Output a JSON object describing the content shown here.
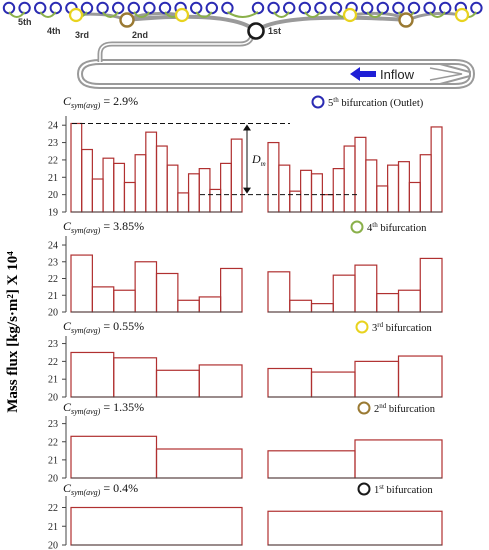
{
  "y_axis_label": "Mass flux [kg/s·m²] X 10⁴",
  "schematic": {
    "inflow_label": "Inflow",
    "generation_labels": [
      "5th",
      "4th",
      "3rd",
      "2nd",
      "1st"
    ],
    "colors": {
      "gen1": "#1a1a1a",
      "gen2": "#9a7a33",
      "gen3": "#e8d31f",
      "gen4": "#8ab04a",
      "gen5": "#2b2bb3",
      "pipe": "#9a9a9a",
      "arrow": "#1f1fd6"
    }
  },
  "chart_data": [
    {
      "type": "bar",
      "id": "gen5",
      "csym_value": "= 2.9%",
      "bifurcation_sup": "th",
      "bifurcation_label": " bifurcation (Outlet)",
      "bifurcation_number": "5",
      "marker_color": "#2b2bb3",
      "ylim": [
        19,
        24.3
      ],
      "yticks": [
        19,
        20,
        21,
        22,
        23,
        24
      ],
      "groups": [
        [
          24.1,
          22.6,
          20.9,
          22.1,
          21.8,
          20.7,
          22.3,
          23.6,
          22.8,
          21.7,
          20.1,
          21.2,
          21.5,
          20.3,
          21.8,
          23.2
        ],
        [
          23.0,
          21.7,
          20.2,
          21.4,
          21.2,
          20.0,
          21.5,
          22.8,
          23.3,
          22.0,
          20.5,
          21.7,
          21.9,
          20.7,
          22.3,
          23.9
        ]
      ],
      "annotation": {
        "label": "D",
        "sub": "m",
        "max": 24.1,
        "min": 20.0
      }
    },
    {
      "type": "bar",
      "id": "gen4",
      "csym_value": "= 3.85%",
      "bifurcation_sup": "th",
      "bifurcation_label": " bifurcation",
      "bifurcation_number": "4",
      "marker_color": "#8ab04a",
      "ylim": [
        20,
        24.3
      ],
      "yticks": [
        20,
        21,
        22,
        23,
        24
      ],
      "groups": [
        [
          23.4,
          21.5,
          21.3,
          23.0,
          22.3,
          20.7,
          20.9,
          22.6
        ],
        [
          22.4,
          20.7,
          20.5,
          22.2,
          22.8,
          21.1,
          21.3,
          23.2
        ]
      ]
    },
    {
      "type": "bar",
      "id": "gen3",
      "csym_value": "= 0.55%",
      "bifurcation_sup": "rd",
      "bifurcation_label": " bifurcation",
      "bifurcation_number": "3",
      "marker_color": "#e8d31f",
      "ylim": [
        20,
        23.2
      ],
      "yticks": [
        20,
        21,
        22,
        23
      ],
      "groups": [
        [
          22.5,
          22.2,
          21.5,
          21.8
        ],
        [
          21.6,
          21.4,
          22.0,
          22.3
        ]
      ]
    },
    {
      "type": "bar",
      "id": "gen2",
      "csym_value": "= 1.35%",
      "bifurcation_sup": "nd",
      "bifurcation_label": " bifurcation",
      "bifurcation_number": "2",
      "marker_color": "#9a7a33",
      "ylim": [
        20,
        23.2
      ],
      "yticks": [
        20,
        21,
        22,
        23
      ],
      "groups": [
        [
          22.3,
          21.6
        ],
        [
          21.5,
          22.1
        ]
      ]
    },
    {
      "type": "bar",
      "id": "gen1",
      "csym_value": "= 0.4%",
      "bifurcation_sup": "st",
      "bifurcation_label": " bifurcation",
      "bifurcation_number": "1",
      "marker_color": "#1a1a1a",
      "ylim": [
        20,
        22.4
      ],
      "yticks": [
        20,
        21,
        22
      ],
      "groups": [
        [
          22.0
        ],
        [
          21.8
        ]
      ]
    }
  ]
}
